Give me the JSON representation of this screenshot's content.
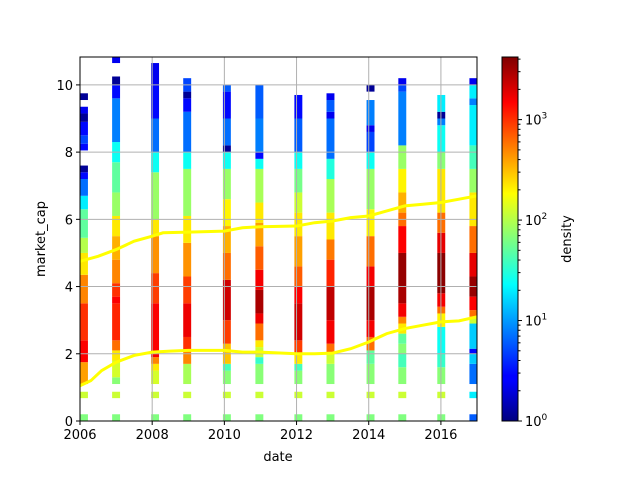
{
  "chart_data": {
    "type": "heatmap",
    "title": "",
    "xlabel": "date",
    "ylabel": "market_cap",
    "xlim": [
      2006,
      2017
    ],
    "ylim": [
      0,
      10.83
    ],
    "x_ticks": [
      "2006",
      "2008",
      "2010",
      "2012",
      "2014",
      "2016"
    ],
    "x_tick_values": [
      2006,
      2008,
      2010,
      2012,
      2014,
      2016
    ],
    "y_ticks": [
      "0",
      "2",
      "4",
      "6",
      "8",
      "10"
    ],
    "y_tick_values": [
      0,
      2,
      4,
      6,
      8,
      10
    ],
    "grid": true,
    "colorbar": {
      "label": "density",
      "scale": "log",
      "colormap": "jet",
      "range": [
        1,
        4200
      ],
      "ticks": [
        {
          "value": 1,
          "base": "10",
          "exp": "0"
        },
        {
          "value": 10,
          "base": "10",
          "exp": "1"
        },
        {
          "value": 100,
          "base": "10",
          "exp": "2"
        },
        {
          "value": 1000,
          "base": "10",
          "exp": "3"
        }
      ]
    },
    "column_width_years": 0.22,
    "columns": [
      {
        "x": 2006.0,
        "segments": [
          [
            0,
            0.2,
            65
          ],
          [
            0.68,
            0.87,
            120
          ],
          [
            1.1,
            1.75,
            400
          ],
          [
            1.75,
            2.4,
            1500
          ],
          [
            2.4,
            3.5,
            1000
          ],
          [
            3.5,
            4.35,
            500
          ],
          [
            4.35,
            5.0,
            220
          ],
          [
            5.0,
            5.45,
            100
          ],
          [
            5.45,
            6.3,
            50
          ],
          [
            6.3,
            6.7,
            20
          ],
          [
            6.7,
            7.2,
            7
          ],
          [
            7.2,
            7.4,
            3
          ],
          [
            7.4,
            7.6,
            1.2
          ],
          [
            8.05,
            8.25,
            3
          ],
          [
            8.25,
            8.5,
            5
          ],
          [
            8.5,
            8.9,
            3
          ],
          [
            8.9,
            9.15,
            1.2
          ],
          [
            9.15,
            9.35,
            2.5
          ],
          [
            9.55,
            9.75,
            1.2
          ]
        ]
      },
      {
        "x": 2006.89,
        "segments": [
          [
            0,
            0.2,
            65
          ],
          [
            0.68,
            0.87,
            120
          ],
          [
            1.1,
            1.3,
            70
          ],
          [
            1.3,
            1.8,
            130
          ],
          [
            1.8,
            2.1,
            220
          ],
          [
            2.1,
            2.4,
            600
          ],
          [
            2.4,
            3.5,
            1100
          ],
          [
            3.5,
            3.7,
            1500
          ],
          [
            3.7,
            4.1,
            1000
          ],
          [
            4.1,
            4.8,
            500
          ],
          [
            4.8,
            5.5,
            350
          ],
          [
            5.5,
            6.1,
            220
          ],
          [
            6.1,
            6.8,
            80
          ],
          [
            6.8,
            7.7,
            50
          ],
          [
            7.7,
            8.3,
            25
          ],
          [
            8.3,
            9.6,
            8
          ],
          [
            9.6,
            10.0,
            3
          ],
          [
            10.0,
            10.25,
            1.2
          ],
          [
            10.65,
            10.85,
            2.5
          ]
        ]
      },
      {
        "x": 2007.97,
        "segments": [
          [
            0,
            0.2,
            65
          ],
          [
            0.68,
            0.87,
            120
          ],
          [
            1.1,
            1.5,
            130
          ],
          [
            1.5,
            1.7,
            220
          ],
          [
            1.7,
            1.9,
            500
          ],
          [
            1.9,
            3.5,
            1500
          ],
          [
            3.5,
            4.4,
            900
          ],
          [
            4.4,
            5.5,
            450
          ],
          [
            5.5,
            6.0,
            220
          ],
          [
            6.0,
            7.4,
            80
          ],
          [
            7.4,
            8.0,
            25
          ],
          [
            8.0,
            9.0,
            7
          ],
          [
            9.0,
            10.0,
            3
          ],
          [
            10.0,
            10.65,
            2.5
          ]
        ]
      },
      {
        "x": 2008.86,
        "segments": [
          [
            0,
            0.2,
            65
          ],
          [
            0.68,
            0.87,
            120
          ],
          [
            1.1,
            1.7,
            90
          ],
          [
            1.7,
            2.1,
            500
          ],
          [
            2.1,
            2.5,
            1000
          ],
          [
            2.5,
            3.5,
            1700
          ],
          [
            3.5,
            4.3,
            900
          ],
          [
            4.3,
            5.3,
            450
          ],
          [
            5.3,
            6.1,
            220
          ],
          [
            6.1,
            7.5,
            80
          ],
          [
            7.5,
            8.0,
            25
          ],
          [
            8.0,
            9.2,
            7
          ],
          [
            9.2,
            9.6,
            3
          ],
          [
            9.6,
            9.8,
            1.2
          ],
          [
            9.8,
            10.2,
            5
          ]
        ]
      },
      {
        "x": 2009.96,
        "segments": [
          [
            0,
            0.2,
            65
          ],
          [
            0.68,
            0.87,
            120
          ],
          [
            1.1,
            1.5,
            70
          ],
          [
            1.5,
            1.7,
            40
          ],
          [
            1.7,
            2.3,
            300
          ],
          [
            2.3,
            3.0,
            900
          ],
          [
            3.0,
            4.2,
            2200
          ],
          [
            4.2,
            5.0,
            600
          ],
          [
            5.0,
            5.8,
            350
          ],
          [
            5.8,
            6.6,
            200
          ],
          [
            6.6,
            7.5,
            80
          ],
          [
            7.5,
            8.0,
            25
          ],
          [
            8.0,
            8.2,
            1.2
          ],
          [
            8.2,
            9.0,
            7
          ],
          [
            9.0,
            9.8,
            3
          ],
          [
            9.8,
            10.0,
            6
          ]
        ]
      },
      {
        "x": 2010.86,
        "segments": [
          [
            0,
            0.2,
            65
          ],
          [
            0.68,
            0.87,
            120
          ],
          [
            1.1,
            1.7,
            70
          ],
          [
            1.7,
            1.9,
            35
          ],
          [
            1.9,
            2.2,
            120
          ],
          [
            2.2,
            2.4,
            220
          ],
          [
            2.4,
            2.9,
            600
          ],
          [
            2.9,
            3.2,
            1700
          ],
          [
            3.2,
            3.9,
            3000
          ],
          [
            3.9,
            4.5,
            1600
          ],
          [
            4.5,
            5.2,
            700
          ],
          [
            5.2,
            5.9,
            400
          ],
          [
            5.9,
            6.5,
            220
          ],
          [
            6.5,
            7.5,
            90
          ],
          [
            7.5,
            7.8,
            25
          ],
          [
            7.8,
            8.0,
            3
          ],
          [
            8.0,
            9.0,
            8
          ],
          [
            9.0,
            10.0,
            6
          ]
        ]
      },
      {
        "x": 2011.94,
        "segments": [
          [
            0,
            0.2,
            65
          ],
          [
            0.68,
            0.87,
            120
          ],
          [
            1.1,
            1.5,
            70
          ],
          [
            1.5,
            1.7,
            40
          ],
          [
            1.7,
            2.0,
            220
          ],
          [
            2.0,
            2.4,
            900
          ],
          [
            2.4,
            3.5,
            2200
          ],
          [
            3.5,
            4.0,
            1500
          ],
          [
            4.0,
            4.6,
            700
          ],
          [
            4.6,
            5.5,
            400
          ],
          [
            5.5,
            6.2,
            220
          ],
          [
            6.2,
            6.8,
            120
          ],
          [
            6.8,
            7.5,
            60
          ],
          [
            7.5,
            8.0,
            25
          ],
          [
            8.0,
            9.0,
            6
          ],
          [
            9.0,
            9.7,
            3
          ]
        ]
      },
      {
        "x": 2012.83,
        "segments": [
          [
            0,
            0.2,
            65
          ],
          [
            0.68,
            0.87,
            120
          ],
          [
            1.1,
            1.7,
            70
          ],
          [
            1.7,
            2.0,
            120
          ],
          [
            2.0,
            2.3,
            600
          ],
          [
            2.3,
            3.0,
            1600
          ],
          [
            3.0,
            4.0,
            2500
          ],
          [
            4.0,
            4.8,
            1100
          ],
          [
            4.8,
            5.4,
            550
          ],
          [
            5.4,
            6.2,
            220
          ],
          [
            6.2,
            7.2,
            90
          ],
          [
            7.2,
            7.8,
            30
          ],
          [
            7.8,
            9.0,
            7
          ],
          [
            9.0,
            9.2,
            2.5
          ],
          [
            9.2,
            9.55,
            6
          ],
          [
            9.55,
            9.75,
            2.5
          ]
        ]
      },
      {
        "x": 2013.94,
        "segments": [
          [
            0,
            0.2,
            65
          ],
          [
            0.68,
            0.87,
            120
          ],
          [
            1.1,
            1.7,
            70
          ],
          [
            1.7,
            2.1,
            50
          ],
          [
            2.1,
            2.5,
            600
          ],
          [
            2.5,
            3.0,
            1600
          ],
          [
            3.0,
            4.0,
            3000
          ],
          [
            4.0,
            4.6,
            1600
          ],
          [
            4.6,
            5.5,
            600
          ],
          [
            5.5,
            6.3,
            200
          ],
          [
            6.3,
            7.5,
            80
          ],
          [
            7.5,
            8.0,
            25
          ],
          [
            8.0,
            8.6,
            5
          ],
          [
            8.6,
            8.8,
            2.5
          ],
          [
            8.8,
            9.55,
            8
          ],
          [
            9.8,
            10.0,
            1.2
          ]
        ]
      },
      {
        "x": 2014.82,
        "segments": [
          [
            0,
            0.2,
            65
          ],
          [
            0.68,
            0.87,
            120
          ],
          [
            1.1,
            1.6,
            70
          ],
          [
            1.6,
            2.0,
            40
          ],
          [
            2.0,
            2.3,
            70
          ],
          [
            2.3,
            2.6,
            50
          ],
          [
            2.6,
            2.9,
            220
          ],
          [
            2.9,
            3.1,
            500
          ],
          [
            3.1,
            3.5,
            1600
          ],
          [
            3.5,
            4.0,
            3000
          ],
          [
            4.0,
            5.0,
            3500
          ],
          [
            5.0,
            5.8,
            1500
          ],
          [
            5.8,
            6.2,
            600
          ],
          [
            6.2,
            6.8,
            350
          ],
          [
            6.8,
            7.5,
            200
          ],
          [
            7.5,
            8.2,
            80
          ],
          [
            8.2,
            9.8,
            8
          ],
          [
            9.8,
            10.0,
            5
          ],
          [
            10.0,
            10.2,
            2.5
          ]
        ]
      },
      {
        "x": 2015.9,
        "segments": [
          [
            0,
            0.2,
            65
          ],
          [
            0.68,
            0.87,
            120
          ],
          [
            1.1,
            1.6,
            70
          ],
          [
            1.6,
            2.0,
            35
          ],
          [
            2.0,
            2.8,
            25
          ],
          [
            2.8,
            3.2,
            200
          ],
          [
            3.2,
            3.4,
            600
          ],
          [
            3.4,
            3.8,
            1600
          ],
          [
            3.8,
            5.0,
            3800
          ],
          [
            5.0,
            5.6,
            1800
          ],
          [
            5.6,
            6.2,
            600
          ],
          [
            6.2,
            7.5,
            220
          ],
          [
            7.5,
            8.0,
            70
          ],
          [
            8.0,
            8.8,
            25
          ],
          [
            8.8,
            9.0,
            8
          ],
          [
            9.0,
            9.2,
            1.2
          ],
          [
            9.2,
            9.7,
            20
          ]
        ]
      },
      {
        "x": 2016.79,
        "segments": [
          [
            0,
            0.2,
            6
          ],
          [
            0.68,
            0.87,
            20
          ],
          [
            1.1,
            1.7,
            7
          ],
          [
            1.7,
            2.0,
            15
          ],
          [
            2.0,
            2.15,
            3
          ],
          [
            2.15,
            2.9,
            15
          ],
          [
            2.9,
            3.1,
            120
          ],
          [
            3.1,
            3.3,
            600
          ],
          [
            3.3,
            3.7,
            1500
          ],
          [
            3.7,
            4.3,
            3500
          ],
          [
            4.3,
            5.0,
            1800
          ],
          [
            5.0,
            5.8,
            600
          ],
          [
            5.8,
            6.8,
            220
          ],
          [
            6.8,
            7.5,
            80
          ],
          [
            7.5,
            8.2,
            40
          ],
          [
            8.2,
            9.4,
            20
          ],
          [
            9.4,
            9.6,
            8
          ],
          [
            9.6,
            10.0,
            20
          ],
          [
            10.0,
            10.2,
            2.5
          ]
        ]
      }
    ],
    "series": [
      {
        "name": "upper",
        "color": "#ffff00",
        "x": [
          2006,
          2006.5,
          2007,
          2007.5,
          2008,
          2008.3,
          2009,
          2010,
          2010.5,
          2011,
          2012,
          2012.5,
          2013,
          2013.5,
          2014,
          2014.5,
          2015,
          2015.5,
          2016,
          2016.5,
          2017
        ],
        "y": [
          4.75,
          4.9,
          5.1,
          5.35,
          5.5,
          5.6,
          5.62,
          5.65,
          5.75,
          5.78,
          5.8,
          5.9,
          5.95,
          6.05,
          6.1,
          6.25,
          6.4,
          6.45,
          6.5,
          6.6,
          6.7
        ]
      },
      {
        "name": "lower",
        "color": "#ffff00",
        "x": [
          2006,
          2006.3,
          2006.6,
          2007,
          2007.5,
          2008,
          2008.5,
          2009,
          2010,
          2010.5,
          2011,
          2012,
          2012.5,
          2013,
          2013.5,
          2014,
          2014.5,
          2015,
          2015.5,
          2016,
          2016.5,
          2017
        ],
        "y": [
          1.05,
          1.2,
          1.5,
          1.75,
          1.95,
          2.05,
          2.08,
          2.1,
          2.1,
          2.05,
          2.05,
          2.0,
          2.0,
          2.02,
          2.15,
          2.35,
          2.6,
          2.75,
          2.85,
          2.95,
          2.98,
          3.1
        ]
      }
    ]
  }
}
